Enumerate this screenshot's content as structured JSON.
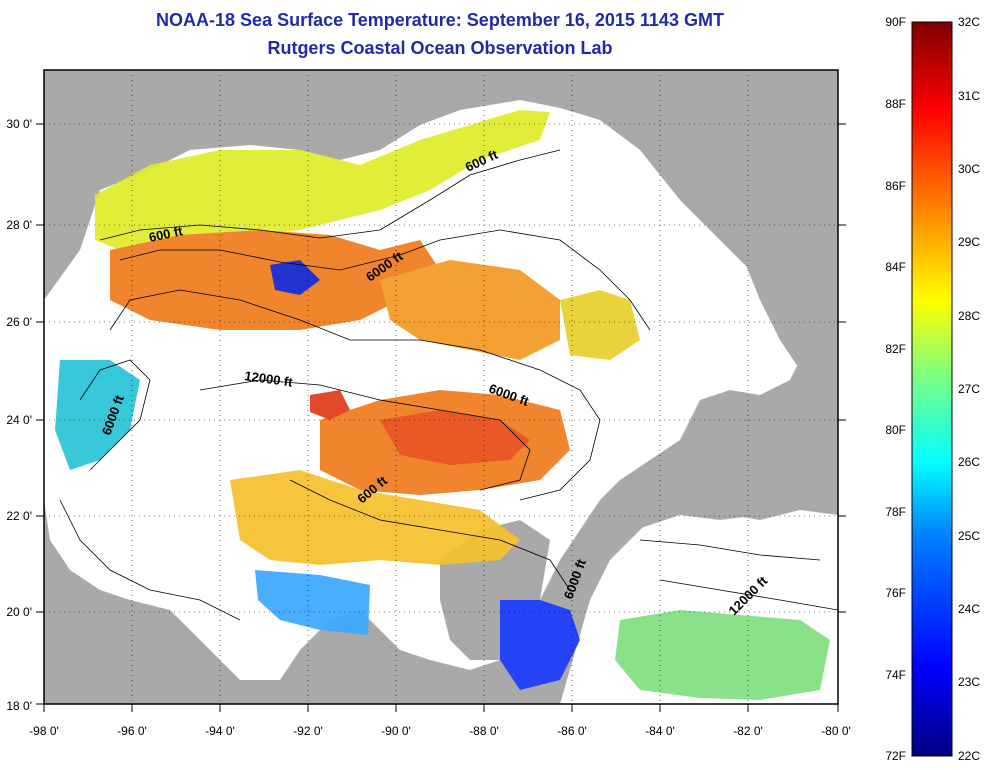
{
  "title": {
    "line1": "NOAA-18 Sea Surface Temperature:  September 16, 2015 1143 GMT",
    "line2": "Rutgers Coastal Ocean Observation Lab"
  },
  "map": {
    "lon_ticks": [
      "-98 0'",
      "-96 0'",
      "-94 0'",
      "-92 0'",
      "-90 0'",
      "-88 0'",
      "-86 0'",
      "-84 0'",
      "-82 0'",
      "-80 0'"
    ],
    "lat_ticks": [
      "30 0'",
      "28 0'",
      "26 0'",
      "24 0'",
      "22 0'",
      "20 0'",
      "18 0'"
    ],
    "lon_range": [
      -98,
      -80
    ],
    "lat_range": [
      18,
      31
    ],
    "land_color": "#a9a9a9",
    "contour_labels": [
      "600 ft",
      "600 ft",
      "6000 ft",
      "12000 ft",
      "6000 ft",
      "6000 ft",
      "600 ft",
      "6000 ft",
      "12000 ft"
    ]
  },
  "colorbar": {
    "fahrenheit": [
      "90F",
      "88F",
      "86F",
      "84F",
      "82F",
      "80F",
      "78F",
      "76F",
      "74F",
      "72F"
    ],
    "celsius": [
      "32C",
      "31C",
      "30C",
      "29C",
      "28C",
      "27C",
      "26C",
      "25C",
      "24C",
      "23C",
      "22C"
    ],
    "colors": [
      "#00007f",
      "#0000ff",
      "#007fff",
      "#00ffff",
      "#7fff7f",
      "#ffff00",
      "#ff7f00",
      "#ff0000",
      "#7f0000"
    ]
  }
}
